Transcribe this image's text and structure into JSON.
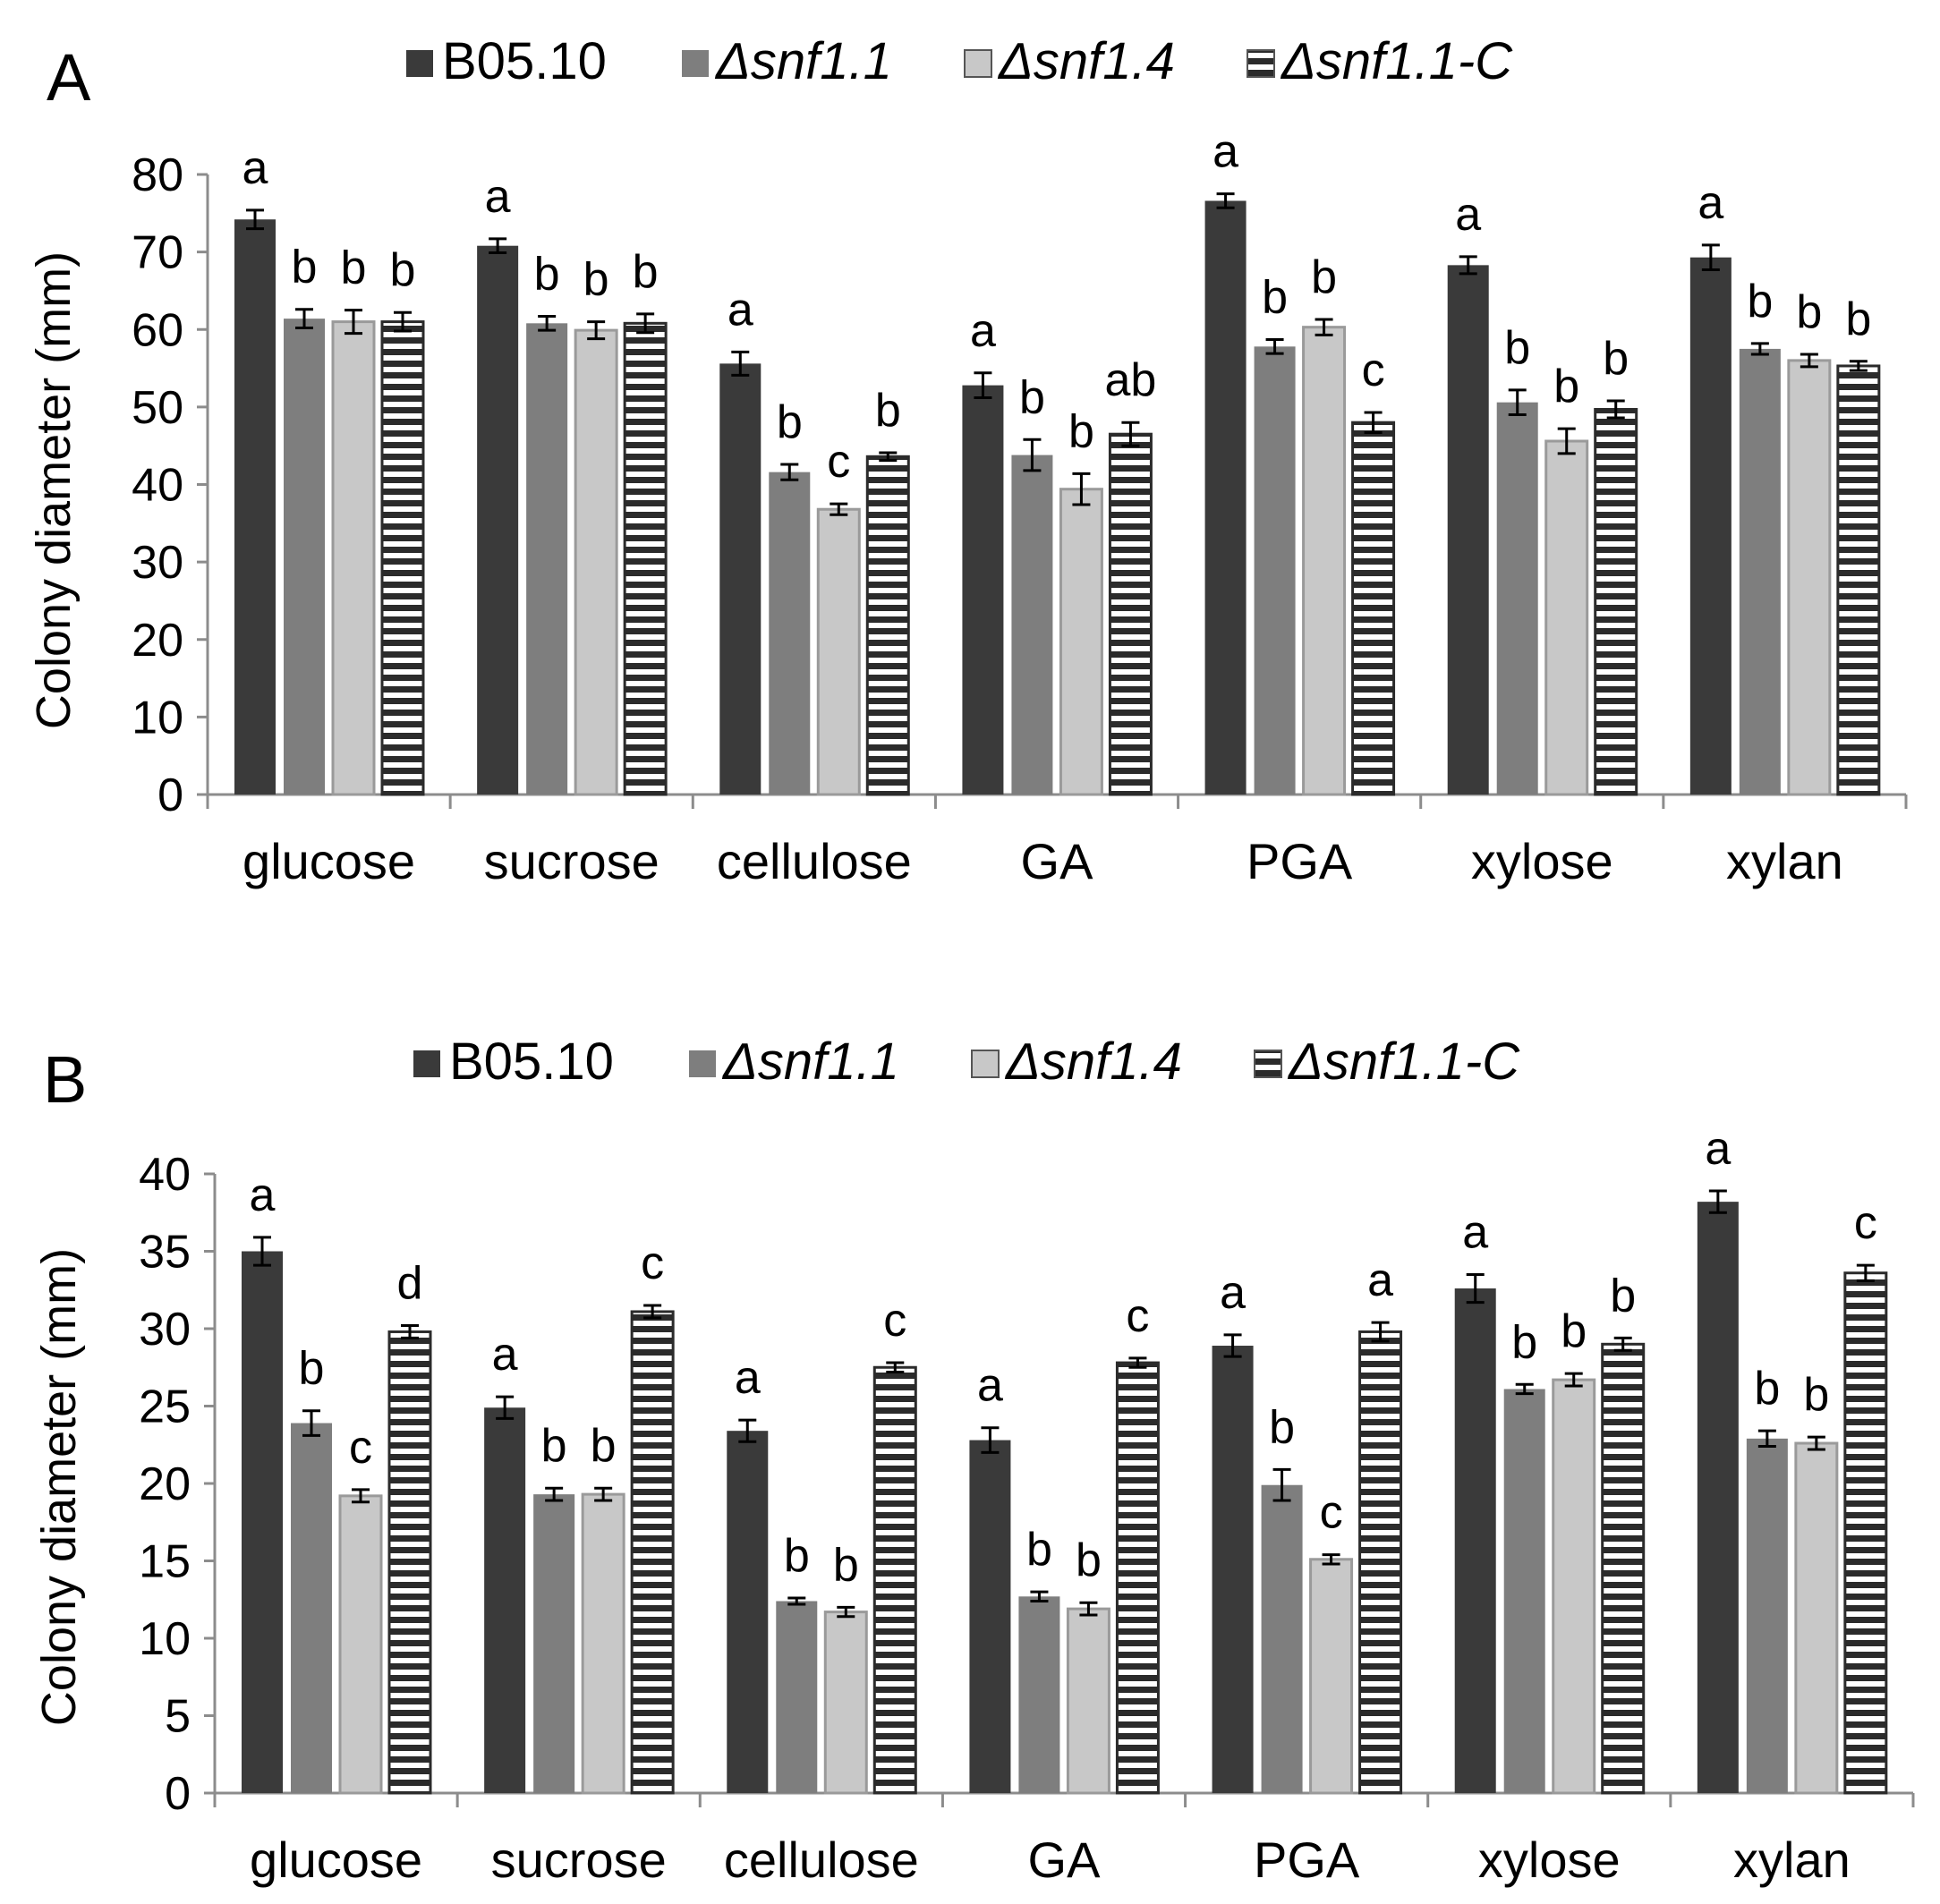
{
  "colors": {
    "B05.10": "#3a3a3a",
    "snf1_1": "#7e7e7e",
    "snf1_4": "#c8c8c8",
    "stripe_fg": "#2b2b2b",
    "stripe_bg": "#ffffff",
    "axis": "#8c8c8c",
    "error_bar": "#000000"
  },
  "chart_data": [
    {
      "panel": "A",
      "type": "bar",
      "ylabel": "Colony diameter (mm)",
      "xlabel": "",
      "ylim": [
        0,
        80
      ],
      "yticks": [
        0,
        10,
        20,
        30,
        40,
        50,
        60,
        70,
        80
      ],
      "categories": [
        "glucose",
        "sucrose",
        "cellulose",
        "GA",
        "PGA",
        "xylose",
        "xylan"
      ],
      "legend": [
        "B05.10",
        "Δsnf1.1",
        "Δsnf1.4",
        "Δsnf1.1-C"
      ],
      "series": [
        {
          "name": "B05.10",
          "values": [
            74.2,
            70.8,
            55.6,
            52.8,
            76.6,
            68.3,
            69.3
          ],
          "errors": [
            1.2,
            0.9,
            1.5,
            1.6,
            0.9,
            1.1,
            1.6
          ],
          "labels": [
            "a",
            "a",
            "a",
            "a",
            "a",
            "a",
            "a"
          ]
        },
        {
          "name": "Δsnf1.1",
          "values": [
            61.4,
            60.8,
            41.6,
            43.8,
            57.8,
            50.6,
            57.5
          ],
          "errors": [
            1.2,
            0.9,
            1.0,
            2.0,
            0.9,
            1.6,
            0.7
          ],
          "labels": [
            "b",
            "b",
            "b",
            "b",
            "b",
            "b",
            "b"
          ]
        },
        {
          "name": "Δsnf1.4",
          "values": [
            61.0,
            59.9,
            36.8,
            39.4,
            60.3,
            45.6,
            56.0
          ],
          "errors": [
            1.5,
            1.1,
            0.7,
            2.0,
            1.0,
            1.6,
            0.8
          ],
          "labels": [
            "b",
            "b",
            "c",
            "b",
            "b",
            "b",
            "b"
          ]
        },
        {
          "name": "Δsnf1.1-C",
          "values": [
            61.0,
            60.8,
            43.6,
            46.5,
            48.0,
            49.7,
            55.3
          ],
          "errors": [
            1.2,
            1.2,
            0.5,
            1.5,
            1.3,
            1.1,
            0.6
          ],
          "labels": [
            "b",
            "b",
            "b",
            "ab",
            "c",
            "b",
            "b"
          ]
        }
      ]
    },
    {
      "panel": "B",
      "type": "bar",
      "ylabel": "Colony diameter (mm)",
      "xlabel": "",
      "ylim": [
        0,
        40
      ],
      "yticks": [
        0,
        5,
        10,
        15,
        20,
        25,
        30,
        35,
        40
      ],
      "categories": [
        "glucose",
        "sucrose",
        "cellulose",
        "GA",
        "PGA",
        "xylose",
        "xylan"
      ],
      "legend": [
        "B05.10",
        "Δsnf1.1",
        "Δsnf1.4",
        "Δsnf1.1-C"
      ],
      "series": [
        {
          "name": "B05.10",
          "values": [
            35.0,
            24.9,
            23.4,
            22.8,
            28.9,
            32.6,
            38.2
          ],
          "errors": [
            0.9,
            0.7,
            0.7,
            0.8,
            0.7,
            0.9,
            0.7
          ],
          "labels": [
            "a",
            "a",
            "a",
            "a",
            "a",
            "a",
            "a"
          ]
        },
        {
          "name": "Δsnf1.1",
          "values": [
            23.9,
            19.3,
            12.4,
            12.7,
            19.9,
            26.1,
            22.9
          ],
          "errors": [
            0.8,
            0.4,
            0.2,
            0.3,
            1.0,
            0.3,
            0.5
          ],
          "labels": [
            "b",
            "b",
            "b",
            "b",
            "b",
            "b",
            "b"
          ]
        },
        {
          "name": "Δsnf1.4",
          "values": [
            19.2,
            19.3,
            11.7,
            11.9,
            15.1,
            26.7,
            22.6
          ],
          "errors": [
            0.4,
            0.4,
            0.3,
            0.4,
            0.3,
            0.4,
            0.4
          ],
          "labels": [
            "c",
            "b",
            "b",
            "b",
            "c",
            "b",
            "b"
          ]
        },
        {
          "name": "Δsnf1.1-C",
          "values": [
            29.8,
            31.1,
            27.5,
            27.8,
            29.8,
            29.0,
            33.6
          ],
          "errors": [
            0.4,
            0.4,
            0.3,
            0.3,
            0.6,
            0.4,
            0.5
          ],
          "labels": [
            "d",
            "c",
            "c",
            "c",
            "a",
            "b",
            "c"
          ]
        }
      ]
    }
  ]
}
